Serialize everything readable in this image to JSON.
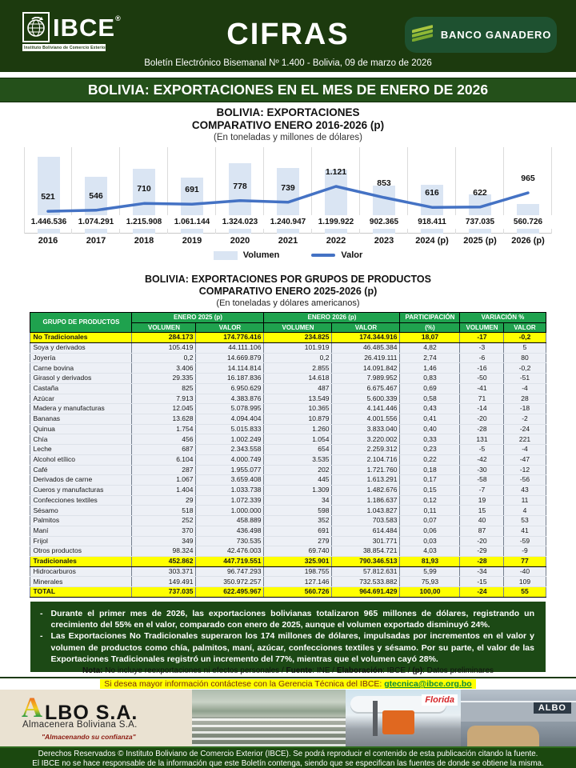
{
  "header": {
    "brand": "IBCE",
    "brand_reg": "®",
    "brand_sub": "Instituto Boliviano de Comercio Exterior",
    "title": "CIFRAS",
    "sponsor": "BANCO GANADERO",
    "subtitle": "Boletín Electrónico Bisemanal Nº 1.400 - Bolivia, 09 de marzo de 2026"
  },
  "section_title": "BOLIVIA: EXPORTACIONES EN EL MES DE ENERO DE 2026",
  "chart": {
    "title1": "BOLIVIA: EXPORTACIONES",
    "title2": "COMPARATIVO ENERO 2016-2026 (p)",
    "subtitle": "(En toneladas y millones de dólares)",
    "legend_volume": "Volumen",
    "legend_value": "Valor"
  },
  "chart_data": {
    "type": "bar+line",
    "title": "BOLIVIA: EXPORTACIONES COMPARATIVO ENERO 2016-2026 (p)",
    "subtitle": "(En toneladas y millones de dólares)",
    "categories": [
      "2016",
      "2017",
      "2018",
      "2019",
      "2020",
      "2021",
      "2022",
      "2023",
      "2024 (p)",
      "2025 (p)",
      "2026 (p)"
    ],
    "series": [
      {
        "name": "Volumen",
        "kind": "bar",
        "unit": "toneladas",
        "values": [
          1446536,
          1074291,
          1215908,
          1061144,
          1324023,
          1240947,
          1199922,
          902365,
          918411,
          737035,
          560726
        ],
        "labels": [
          "1.446.536",
          "1.074.291",
          "1.215.908",
          "1.061.144",
          "1.324.023",
          "1.240.947",
          "1.199.922",
          "902.365",
          "918.411",
          "737.035",
          "560.726"
        ]
      },
      {
        "name": "Valor",
        "kind": "line",
        "unit": "millones de dólares",
        "values": [
          521,
          546,
          710,
          691,
          778,
          739,
          1121,
          853,
          616,
          622,
          965
        ],
        "labels": [
          "521",
          "546",
          "710",
          "691",
          "778",
          "739",
          "1.121",
          "853",
          "616",
          "622",
          "965"
        ]
      }
    ],
    "legend_position": "bottom",
    "grid": "vertical"
  },
  "table": {
    "title1": "BOLIVIA: EXPORTACIONES POR GRUPOS DE PRODUCTOS",
    "title2": "COMPARATIVO ENERO 2025-2026 (p)",
    "subtitle": "(En toneladas y dólares americanos)",
    "header": {
      "group": "GRUPO DE PRODUCTOS",
      "enero2025": "ENERO 2025 (p)",
      "enero2026": "ENERO 2026 (p)",
      "participacion1": "PARTICIPACIÓN",
      "participacion2": "(%)",
      "variacion": "VARIACIÓN %",
      "volumen": "VOLUMEN",
      "valor": "VALOR"
    },
    "rows": [
      {
        "label": "No Tradicionales",
        "v25": "284.173",
        "val25": "174.776.416",
        "v26": "234.825",
        "val26": "174.344.916",
        "part": "18,07",
        "varv": "-17",
        "varval": "-0,2",
        "summary": true
      },
      {
        "label": "Soya y derivados",
        "v25": "105.419",
        "val25": "44.111.106",
        "v26": "101.919",
        "val26": "46.485.384",
        "part": "4,82",
        "varv": "-3",
        "varval": "5",
        "summary": false
      },
      {
        "label": "Joyería",
        "v25": "0,2",
        "val25": "14.669.879",
        "v26": "0,2",
        "val26": "26.419.111",
        "part": "2,74",
        "varv": "-6",
        "varval": "80",
        "summary": false
      },
      {
        "label": "Carne bovina",
        "v25": "3.406",
        "val25": "14.114.814",
        "v26": "2.855",
        "val26": "14.091.842",
        "part": "1,46",
        "varv": "-16",
        "varval": "-0,2",
        "summary": false
      },
      {
        "label": "Girasol y derivados",
        "v25": "29.335",
        "val25": "16.187.836",
        "v26": "14.618",
        "val26": "7.989.952",
        "part": "0,83",
        "varv": "-50",
        "varval": "-51",
        "summary": false
      },
      {
        "label": "Castaña",
        "v25": "825",
        "val25": "6.950.629",
        "v26": "487",
        "val26": "6.675.467",
        "part": "0,69",
        "varv": "-41",
        "varval": "-4",
        "summary": false
      },
      {
        "label": "Azúcar",
        "v25": "7.913",
        "val25": "4.383.876",
        "v26": "13.549",
        "val26": "5.600.339",
        "part": "0,58",
        "varv": "71",
        "varval": "28",
        "summary": false
      },
      {
        "label": "Madera y manufacturas",
        "v25": "12.045",
        "val25": "5.078.995",
        "v26": "10.365",
        "val26": "4.141.446",
        "part": "0,43",
        "varv": "-14",
        "varval": "-18",
        "summary": false
      },
      {
        "label": "Bananas",
        "v25": "13.628",
        "val25": "4.094.404",
        "v26": "10.879",
        "val26": "4.001.556",
        "part": "0,41",
        "varv": "-20",
        "varval": "-2",
        "summary": false
      },
      {
        "label": "Quinua",
        "v25": "1.754",
        "val25": "5.015.833",
        "v26": "1.260",
        "val26": "3.833.040",
        "part": "0,40",
        "varv": "-28",
        "varval": "-24",
        "summary": false
      },
      {
        "label": "Chía",
        "v25": "456",
        "val25": "1.002.249",
        "v26": "1.054",
        "val26": "3.220.002",
        "part": "0,33",
        "varv": "131",
        "varval": "221",
        "summary": false
      },
      {
        "label": "Leche",
        "v25": "687",
        "val25": "2.343.558",
        "v26": "654",
        "val26": "2.259.312",
        "part": "0,23",
        "varv": "-5",
        "varval": "-4",
        "summary": false
      },
      {
        "label": "Alcohol etílico",
        "v25": "6.104",
        "val25": "4.000.749",
        "v26": "3.535",
        "val26": "2.104.716",
        "part": "0,22",
        "varv": "-42",
        "varval": "-47",
        "summary": false
      },
      {
        "label": "Café",
        "v25": "287",
        "val25": "1.955.077",
        "v26": "202",
        "val26": "1.721.760",
        "part": "0,18",
        "varv": "-30",
        "varval": "-12",
        "summary": false
      },
      {
        "label": "Derivados de carne",
        "v25": "1.067",
        "val25": "3.659.408",
        "v26": "445",
        "val26": "1.613.291",
        "part": "0,17",
        "varv": "-58",
        "varval": "-56",
        "summary": false
      },
      {
        "label": "Cueros y manufacturas",
        "v25": "1.404",
        "val25": "1.033.738",
        "v26": "1.309",
        "val26": "1.482.676",
        "part": "0,15",
        "varv": "-7",
        "varval": "43",
        "summary": false
      },
      {
        "label": "Confecciones textiles",
        "v25": "29",
        "val25": "1.072.339",
        "v26": "34",
        "val26": "1.186.637",
        "part": "0,12",
        "varv": "19",
        "varval": "11",
        "summary": false
      },
      {
        "label": "Sésamo",
        "v25": "518",
        "val25": "1.000.000",
        "v26": "598",
        "val26": "1.043.827",
        "part": "0,11",
        "varv": "15",
        "varval": "4",
        "summary": false
      },
      {
        "label": "Palmitos",
        "v25": "252",
        "val25": "458.889",
        "v26": "352",
        "val26": "703.583",
        "part": "0,07",
        "varv": "40",
        "varval": "53",
        "summary": false
      },
      {
        "label": "Maní",
        "v25": "370",
        "val25": "436.498",
        "v26": "691",
        "val26": "614.484",
        "part": "0,06",
        "varv": "87",
        "varval": "41",
        "summary": false
      },
      {
        "label": "Frijol",
        "v25": "349",
        "val25": "730.535",
        "v26": "279",
        "val26": "301.771",
        "part": "0,03",
        "varv": "-20",
        "varval": "-59",
        "summary": false
      },
      {
        "label": "Otros productos",
        "v25": "98.324",
        "val25": "42.476.003",
        "v26": "69.740",
        "val26": "38.854.721",
        "part": "4,03",
        "varv": "-29",
        "varval": "-9",
        "summary": false
      },
      {
        "label": "Tradicionales",
        "v25": "452.862",
        "val25": "447.719.551",
        "v26": "325.901",
        "val26": "790.346.513",
        "part": "81,93",
        "varv": "-28",
        "varval": "77",
        "summary": true
      },
      {
        "label": "Hidrocarburos",
        "v25": "303.371",
        "val25": "96.747.293",
        "v26": "198.755",
        "val26": "57.812.631",
        "part": "5,99",
        "varv": "-34",
        "varval": "-40",
        "summary": false
      },
      {
        "label": "Minerales",
        "v25": "149.491",
        "val25": "350.972.257",
        "v26": "127.146",
        "val26": "732.533.882",
        "part": "75,93",
        "varv": "-15",
        "varval": "109",
        "summary": false
      },
      {
        "label": "TOTAL",
        "v25": "737.035",
        "val25": "622.495.967",
        "v26": "560.726",
        "val26": "964.691.429",
        "part": "100,00",
        "varv": "-24",
        "varval": "55",
        "summary": true
      }
    ]
  },
  "notes": [
    "Durante el primer mes de 2026, las exportaciones bolivianas totalizaron 965 millones de dólares, registrando un crecimiento del 55% en el valor, comparado con enero de 2025, aunque el volumen exportado disminuyó 24%.",
    "Las Exportaciones No Tradicionales superaron los 174 millones de dólares, impulsadas por incrementos en el valor y volumen de productos como chía, palmitos, maní, azúcar, confecciones textiles y sésamo. Por su parte, el valor de las Exportaciones Tradicionales registró un incremento del 77%, mientras que el volumen cayó 28%."
  ],
  "nota_segments": [
    {
      "text": "Nota:",
      "bold": true
    },
    {
      "text": " No incluye reexportaciones ni efectos personales / ",
      "bold": false
    },
    {
      "text": "Fuente",
      "bold": true
    },
    {
      "text": ": INE / ",
      "bold": false
    },
    {
      "text": "Elaboración",
      "bold": true
    },
    {
      "text": ": IBCE / ",
      "bold": false
    },
    {
      "text": "(p)",
      "bold": true
    },
    {
      "text": ": Datos preliminares",
      "bold": false
    }
  ],
  "contact": {
    "text": "Si desea mayor información contáctese con la Gerencia Técnica del IBCE: ",
    "email": "gtecnica@ibce.org.bo"
  },
  "ad": {
    "logo_initial": "A",
    "logo_rest": "LBO S.A.",
    "sub": "Almacenera Boliviana S.A.",
    "tagline": "\"Almacenando su confianza\"",
    "sign_florida": "Florida",
    "sign_albo": "ALBO"
  },
  "footer": {
    "line1": "Derechos Reservados © Instituto Boliviano de Comercio Exterior (IBCE). Se podrá reproducir el contenido de esta publicación citando la fuente.",
    "line2": "El IBCE no se hace responsable de la información que este Boletín contenga, siendo que se especifican las fuentes de donde se obtiene la misma."
  },
  "colors": {
    "header_green": "#1c3a0e",
    "band_green": "#24501a",
    "table_header_green": "#1fa24e",
    "highlight_yellow": "#ffff00",
    "negative_red": "#ff0000",
    "bar_blue": "#dae5f3",
    "line_blue": "#4472c4",
    "email_green": "#0b8a3c"
  }
}
